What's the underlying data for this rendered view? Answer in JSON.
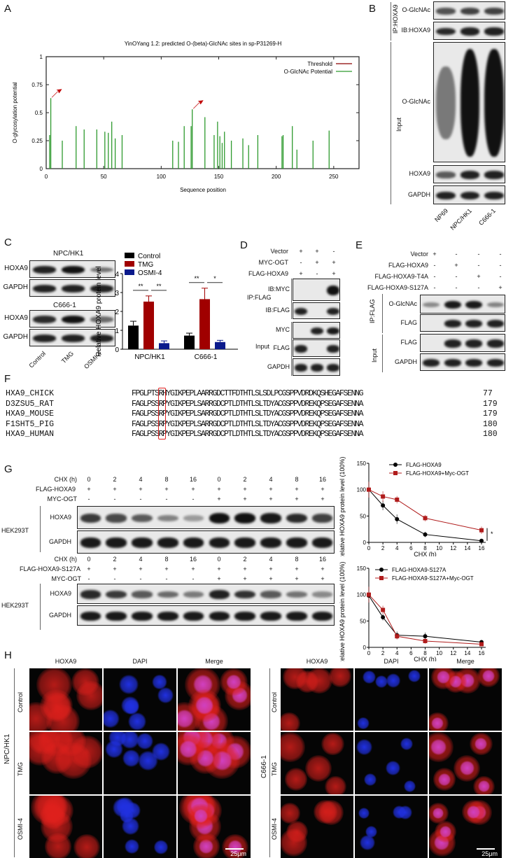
{
  "panels": {
    "A": "A",
    "B": "B",
    "C": "C",
    "D": "D",
    "E": "E",
    "F": "F",
    "G": "G",
    "H": "H"
  },
  "panel_a": {
    "chart_data": {
      "type": "bar",
      "title": "YinOYang 1.2: predicted O-(beta)-GlcNAc sites in sp-P31269-H",
      "xlabel": "Sequence position",
      "ylabel": "O-glycosylation potential",
      "xlim": [
        0,
        272
      ],
      "ylim": [
        0,
        1
      ],
      "xticks": [
        "0",
        "50",
        "100",
        "150",
        "200",
        "250"
      ],
      "yticks": [
        "0",
        "0.25",
        "0.5",
        "0.75",
        "1"
      ],
      "legend": {
        "placement": "top-right",
        "entries": [
          "Threshold",
          "O-GlcNAc Potential"
        ]
      },
      "colors": {
        "threshold": "#8b0000",
        "potential": "#2e9a2e",
        "arrow": "#c00000"
      },
      "x": [
        3,
        4,
        14,
        26,
        33,
        44,
        51,
        54,
        57,
        60,
        66,
        110,
        115,
        120,
        126,
        127,
        138,
        146,
        149,
        151,
        153,
        155,
        161,
        171,
        176,
        184,
        205,
        206,
        214,
        218,
        232,
        246
      ],
      "values": [
        0.3,
        0.63,
        0.25,
        0.38,
        0.35,
        0.35,
        0.33,
        0.32,
        0.42,
        0.27,
        0.3,
        0.25,
        0.24,
        0.38,
        0.38,
        0.53,
        0.46,
        0.3,
        0.42,
        0.29,
        0.23,
        0.33,
        0.25,
        0.27,
        0.21,
        0.3,
        0.29,
        0.3,
        0.38,
        0.17,
        0.25,
        0.34
      ],
      "annotations": {
        "arrows_at_x": [
          4,
          127
        ]
      }
    }
  },
  "panel_b": {
    "ip_label": "IP:HOXA9",
    "input_label": "Input",
    "rows": [
      {
        "label": "O-GlcNAc",
        "bands": [
          0.6,
          0.7,
          0.7
        ]
      },
      {
        "label": "IB:HOXA9",
        "bands": [
          0.85,
          0.9,
          0.9
        ]
      },
      {
        "label": "O-GlcNAc",
        "bands": [
          0.35,
          1,
          1
        ]
      },
      {
        "label": "HOXA9",
        "bands": [
          0.55,
          0.9,
          0.9
        ]
      },
      {
        "label": "GAPDH",
        "bands": [
          0.9,
          0.9,
          0.9
        ]
      }
    ],
    "lanes": [
      "NP69",
      "NPC/HK1",
      "C666-1"
    ]
  },
  "panel_c": {
    "blots": [
      {
        "cell": "NPC/HK1",
        "rows": [
          {
            "label": "HOXA9",
            "bands": [
              0.9,
              1,
              0.4
            ]
          },
          {
            "label": "GAPDH",
            "bands": [
              0.9,
              0.9,
              0.9
            ]
          }
        ]
      },
      {
        "cell": "C666-1",
        "rows": [
          {
            "label": "HOXA9",
            "bands": [
              0.85,
              1,
              0.45
            ]
          },
          {
            "label": "GAPDH",
            "bands": [
              0.9,
              0.9,
              0.9
            ]
          }
        ]
      }
    ],
    "lanes": [
      "Control",
      "TMG",
      "OSMI-4"
    ],
    "chart_data": {
      "type": "bar",
      "ylabel": "Relative HOXA9 protein level",
      "ylim": [
        0,
        4
      ],
      "yticks": [
        "0",
        "1",
        "2",
        "3",
        "4"
      ],
      "categories": [
        "NPC/HK1",
        "C666-1"
      ],
      "legend": {
        "placement": "top-left"
      },
      "series": [
        {
          "name": "Control",
          "color": "#000000",
          "values": [
            1.25,
            0.72
          ],
          "errors": [
            0.23,
            0.13
          ]
        },
        {
          "name": "TMG",
          "color": "#a00000",
          "values": [
            2.52,
            2.65
          ],
          "errors": [
            0.3,
            0.58
          ]
        },
        {
          "name": "OSMI-4",
          "color": "#0a1a8c",
          "values": [
            0.32,
            0.38
          ],
          "errors": [
            0.12,
            0.09
          ]
        }
      ],
      "significance": [
        {
          "group": "NPC/HK1",
          "pairs": [
            "Control-TMG",
            "TMG-OSMI-4"
          ],
          "marks": [
            "**",
            "**"
          ]
        },
        {
          "group": "C666-1",
          "pairs": [
            "Control-TMG",
            "TMG-OSMI-4"
          ],
          "marks": [
            "**",
            "*"
          ]
        }
      ]
    }
  },
  "panel_d": {
    "conditions": [
      {
        "label": "Vector",
        "values": [
          "+",
          "+",
          "-"
        ]
      },
      {
        "label": "MYC-OGT",
        "values": [
          "-",
          "+",
          "+"
        ]
      },
      {
        "label": "FLAG-HOXA9",
        "values": [
          "+",
          "-",
          "+"
        ]
      }
    ],
    "ip_label": "IP:FLAG",
    "input_label": "Input",
    "rows": [
      {
        "label": "IB:MYC",
        "bands": [
          0,
          0,
          1
        ]
      },
      {
        "label": "IB:FLAG",
        "bands": [
          0.9,
          0,
          0.9
        ]
      },
      {
        "label": "MYC",
        "bands": [
          0,
          0.9,
          0.95
        ]
      },
      {
        "label": "FLAG",
        "bands": [
          0.9,
          0,
          0.9
        ]
      },
      {
        "label": "GAPDH",
        "bands": [
          0.9,
          0.9,
          0.9
        ]
      }
    ]
  },
  "panel_e": {
    "conditions": [
      {
        "label": "Vector",
        "values": [
          "+",
          "-",
          "-",
          "-"
        ]
      },
      {
        "label": "FLAG-HOXA9",
        "values": [
          "-",
          "+",
          "-",
          "-"
        ]
      },
      {
        "label": "FLAG-HOXA9-T4A",
        "values": [
          "-",
          "-",
          "+",
          "-"
        ]
      },
      {
        "label": "FLAG-HOXA9-S127A",
        "values": [
          "-",
          "-",
          "-",
          "+"
        ]
      }
    ],
    "ip_label": "IP:FLAG",
    "input_label": "Input",
    "rows": [
      {
        "label": "O-GlcNAc",
        "bands": [
          0.25,
          0.95,
          0.95,
          0.3
        ]
      },
      {
        "label": "FLAG",
        "bands": [
          0,
          0.9,
          0.9,
          0.9
        ]
      },
      {
        "label": "FLAG",
        "bands": [
          0,
          0.9,
          0.9,
          0.9
        ]
      },
      {
        "label": "GAPDH",
        "bands": [
          0.9,
          0.9,
          0.9,
          0.9
        ]
      }
    ]
  },
  "panel_f": {
    "highlight_color": "#e02020",
    "rows": [
      {
        "name": "HXA9_CHICK",
        "seq": "FPGLPTSRHYGIKPEPLAARRGDCTTFDTHTLSLSDLPCGSPPVDRDKQSHEGAFSENNG",
        "num": "77"
      },
      {
        "name": "D3ZSU5_RAT",
        "seq": "FAGLPSSRPYGIKPEPLSARRGDCPTLDTHTLSLTDYACGSPPVDREKQPSEGAFSENNA",
        "num": "179"
      },
      {
        "name": "HXA9_MOUSE",
        "seq": "FAGLPSSRPYGIKPEPLSARRGDCPTLDTHTLSLTDYACGSPPVDREKQPSEGAFSENNA",
        "num": "179"
      },
      {
        "name": "F1SHT5_PIG",
        "seq": "FAGLPSSRPYGIKPEPLSARRGDCPTLDTHTLSLTDYACGSPPVDREKQPSEGAFSENNA",
        "num": "180"
      },
      {
        "name": "HXA9_HUMAN",
        "seq": "FAGLPSSRPYGIKPEPLSARRGDCPTLDTHTLSLTDYACGSPPVDREKQPSEGAFSENNA",
        "num": "180"
      }
    ]
  },
  "panel_g": {
    "cell": "HEK293T",
    "sets": [
      {
        "chx_label": "CHX (h)",
        "chx": [
          "0",
          "2",
          "4",
          "8",
          "16",
          "0",
          "2",
          "4",
          "8",
          "16"
        ],
        "flag_label": "FLAG-HOXA9",
        "flag": [
          "+",
          "+",
          "+",
          "+",
          "+",
          "+",
          "+",
          "+",
          "+",
          "+"
        ],
        "ogt_label": "MYC-OGT",
        "ogt": [
          "-",
          "-",
          "-",
          "-",
          "-",
          "+",
          "+",
          "+",
          "+",
          "+"
        ],
        "rows": [
          {
            "label": "HOXA9",
            "bands": [
              0.75,
              0.65,
              0.55,
              0.3,
              0.15,
              1,
              1,
              0.95,
              0.85,
              0.7
            ]
          },
          {
            "label": "GAPDH",
            "bands": [
              0.95,
              0.95,
              0.95,
              0.95,
              0.95,
              0.95,
              0.95,
              0.95,
              0.95,
              0.95
            ]
          }
        ]
      },
      {
        "chx_label": "CHX (h)",
        "chx": [
          "0",
          "2",
          "4",
          "8",
          "16",
          "0",
          "2",
          "4",
          "8",
          "16"
        ],
        "flag_label": "FLAG-HOXA9-S127A",
        "flag": [
          "+",
          "+",
          "+",
          "+",
          "+",
          "+",
          "+",
          "+",
          "+",
          "+"
        ],
        "ogt_label": "MYC-OGT",
        "ogt": [
          "-",
          "-",
          "-",
          "-",
          "-",
          "+",
          "+",
          "+",
          "+",
          "+"
        ],
        "rows": [
          {
            "label": "HOXA9",
            "bands": [
              0.85,
              0.75,
              0.55,
              0.45,
              0.35,
              0.9,
              0.8,
              0.55,
              0.4,
              0.25
            ]
          },
          {
            "label": "GAPDH",
            "bands": [
              0.95,
              0.95,
              0.95,
              0.95,
              0.95,
              0.95,
              0.95,
              0.95,
              0.95,
              0.95
            ]
          }
        ]
      }
    ],
    "chart_data": [
      {
        "type": "line",
        "xlabel": "CHX (h)",
        "ylabel": "Relative HOXA9 protein level (100%)",
        "xlim": [
          0,
          16
        ],
        "ylim": [
          0,
          150
        ],
        "xticks": [
          "0",
          "2",
          "4",
          "6",
          "8",
          "10",
          "12",
          "14",
          "16"
        ],
        "yticks": [
          "0",
          "50",
          "100",
          "150"
        ],
        "legend": {
          "placement": "top"
        },
        "x": [
          0,
          2,
          4,
          8,
          16
        ],
        "series": [
          {
            "name": "FLAG-HOXA9",
            "color": "#000000",
            "marker": "circle",
            "values": [
              100,
              70,
              44,
              15,
              3
            ],
            "errors": [
              15,
              9,
              9,
              5,
              2
            ]
          },
          {
            "name": "FLAG-HOXA9+Myc-OGT",
            "color": "#b01c1c",
            "marker": "square",
            "values": [
              100,
              87,
              81,
              46,
              23
            ],
            "errors": [
              15,
              10,
              7,
              6,
              7
            ]
          }
        ],
        "significance": "*"
      },
      {
        "type": "line",
        "xlabel": "CHX (h)",
        "ylabel": "Relative HOXA9 protein level (100%)",
        "xlim": [
          0,
          16
        ],
        "ylim": [
          0,
          150
        ],
        "xticks": [
          "0",
          "2",
          "4",
          "6",
          "8",
          "10",
          "12",
          "14",
          "16"
        ],
        "yticks": [
          "0",
          "50",
          "100",
          "150"
        ],
        "legend": {
          "placement": "top"
        },
        "x": [
          0,
          2,
          4,
          8,
          16
        ],
        "series": [
          {
            "name": "FLAG-HOXA9-S127A",
            "color": "#000000",
            "marker": "circle",
            "values": [
              98,
              57,
              23,
              21,
              10
            ],
            "errors": [
              15,
              6,
              7,
              7,
              2
            ]
          },
          {
            "name": "FLAG-HOXA9-S127A+Myc-OGT",
            "color": "#b01c1c",
            "marker": "square",
            "values": [
              100,
              71,
              21,
              12,
              6
            ],
            "errors": [
              15,
              8,
              6,
              5,
              3
            ]
          }
        ]
      }
    ]
  },
  "panel_h": {
    "groups": [
      {
        "cell": "NPC/HK1",
        "columns": [
          "HOXA9",
          "DAPI",
          "Merge"
        ],
        "rows": [
          "Control",
          "TMG",
          "OSMI-4"
        ]
      },
      {
        "cell": "C666-1",
        "columns": [
          "HOXA9",
          "DAPI",
          "Merge"
        ],
        "rows": [
          "Control",
          "TMG",
          "OSMI-4"
        ]
      }
    ],
    "scale_bar": "25μm",
    "colors": {
      "hoxa9": "#e0201c",
      "dapi": "#2030e0",
      "merge": "#d040c0"
    }
  }
}
